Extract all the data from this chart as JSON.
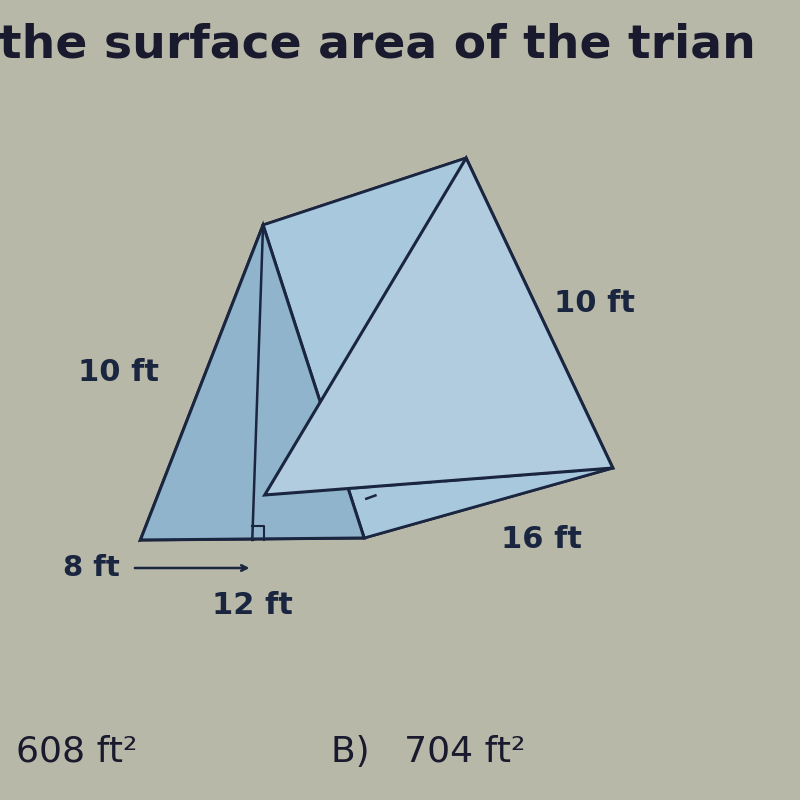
{
  "title_partial": "the surface area of the trian",
  "background_color": "#b8b8a8",
  "prism_fill_light": "#a8c4d8",
  "prism_fill_mid": "#8fb8d0",
  "prism_fill_dark": "#7aa0b8",
  "prism_edge_color": "#1a2540",
  "dimensions": {
    "slant_left": "10 ft",
    "half_base": "8 ft",
    "base": "12 ft",
    "length": "16 ft",
    "slant_top": "10 ft"
  },
  "answers": [
    {
      "label": "608 ft²",
      "prefix": ""
    },
    {
      "label": "704 ft²",
      "prefix": "B)  "
    }
  ],
  "answer_fontsize": 26,
  "title_fontsize": 34,
  "label_fontsize": 20,
  "dim_color": "#1a2540"
}
